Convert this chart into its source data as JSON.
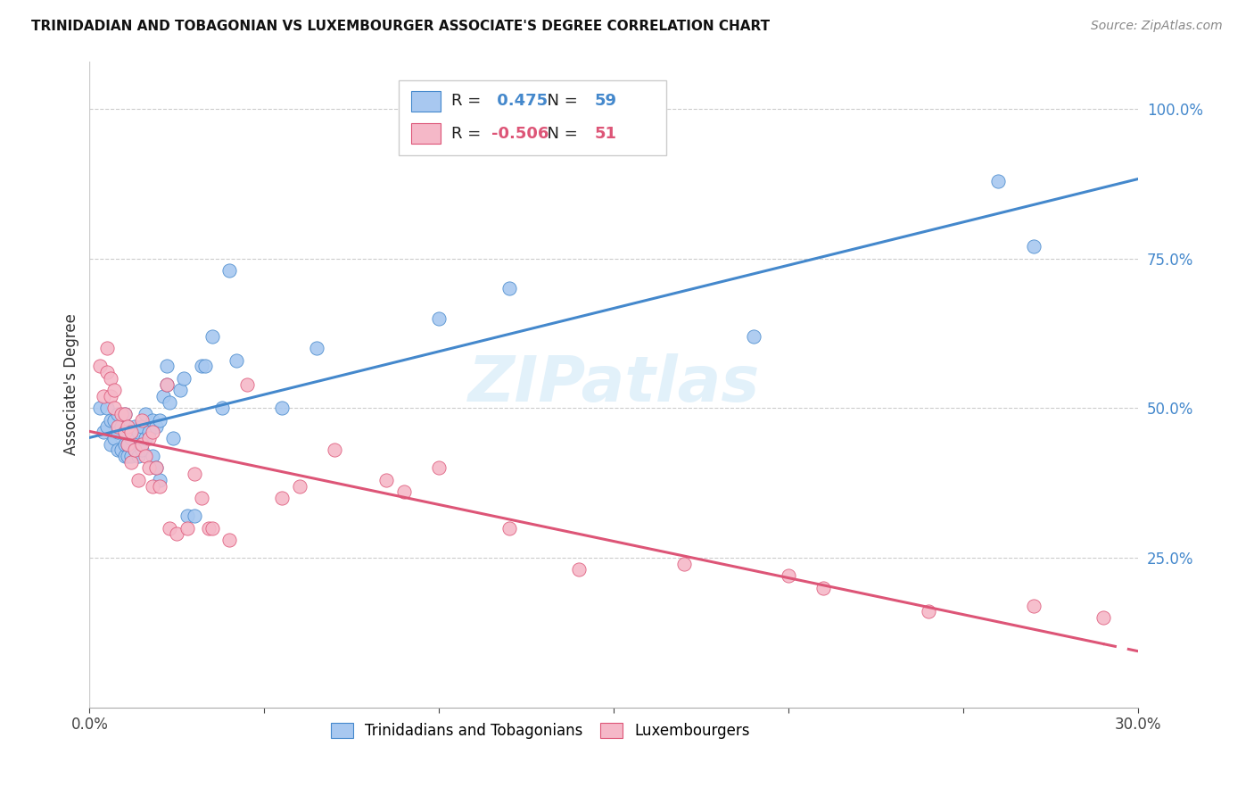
{
  "title": "TRINIDADIAN AND TOBAGONIAN VS LUXEMBOURGER ASSOCIATE'S DEGREE CORRELATION CHART",
  "source": "Source: ZipAtlas.com",
  "ylabel": "Associate's Degree",
  "yticks": [
    "25.0%",
    "50.0%",
    "75.0%",
    "100.0%"
  ],
  "ytick_values": [
    0.25,
    0.5,
    0.75,
    1.0
  ],
  "xlim": [
    0.0,
    0.3
  ],
  "ylim": [
    0.0,
    1.08
  ],
  "watermark": "ZIPatlas",
  "blue_r": 0.475,
  "blue_n": 59,
  "pink_r": -0.506,
  "pink_n": 51,
  "blue_color": "#a8c8f0",
  "pink_color": "#f5b8c8",
  "blue_line_color": "#4488cc",
  "pink_line_color": "#dd5577",
  "blue_number_color": "#4488cc",
  "pink_number_color": "#dd5577",
  "legend_label_blue": "Trinidadians and Tobagonians",
  "legend_label_pink": "Luxembourgers",
  "blue_x": [
    0.003,
    0.004,
    0.005,
    0.005,
    0.006,
    0.006,
    0.007,
    0.007,
    0.008,
    0.008,
    0.008,
    0.009,
    0.009,
    0.01,
    0.01,
    0.01,
    0.01,
    0.011,
    0.011,
    0.011,
    0.012,
    0.012,
    0.013,
    0.013,
    0.014,
    0.014,
    0.015,
    0.015,
    0.016,
    0.016,
    0.017,
    0.018,
    0.018,
    0.019,
    0.019,
    0.02,
    0.02,
    0.021,
    0.022,
    0.022,
    0.023,
    0.024,
    0.026,
    0.027,
    0.028,
    0.03,
    0.032,
    0.033,
    0.035,
    0.038,
    0.04,
    0.042,
    0.055,
    0.065,
    0.1,
    0.12,
    0.19,
    0.26,
    0.27
  ],
  "blue_y": [
    0.5,
    0.46,
    0.47,
    0.5,
    0.44,
    0.48,
    0.45,
    0.48,
    0.43,
    0.46,
    0.49,
    0.43,
    0.47,
    0.42,
    0.44,
    0.46,
    0.49,
    0.42,
    0.44,
    0.47,
    0.42,
    0.45,
    0.43,
    0.47,
    0.42,
    0.46,
    0.43,
    0.47,
    0.45,
    0.49,
    0.46,
    0.42,
    0.48,
    0.4,
    0.47,
    0.38,
    0.48,
    0.52,
    0.54,
    0.57,
    0.51,
    0.45,
    0.53,
    0.55,
    0.32,
    0.32,
    0.57,
    0.57,
    0.62,
    0.5,
    0.73,
    0.58,
    0.5,
    0.6,
    0.65,
    0.7,
    0.62,
    0.88,
    0.77
  ],
  "pink_x": [
    0.003,
    0.004,
    0.005,
    0.005,
    0.006,
    0.006,
    0.007,
    0.007,
    0.008,
    0.009,
    0.01,
    0.01,
    0.011,
    0.011,
    0.012,
    0.012,
    0.013,
    0.014,
    0.015,
    0.015,
    0.016,
    0.017,
    0.017,
    0.018,
    0.018,
    0.019,
    0.02,
    0.022,
    0.023,
    0.025,
    0.028,
    0.03,
    0.032,
    0.034,
    0.035,
    0.04,
    0.045,
    0.055,
    0.06,
    0.07,
    0.085,
    0.09,
    0.1,
    0.12,
    0.14,
    0.17,
    0.2,
    0.21,
    0.24,
    0.27,
    0.29
  ],
  "pink_y": [
    0.57,
    0.52,
    0.56,
    0.6,
    0.52,
    0.55,
    0.5,
    0.53,
    0.47,
    0.49,
    0.46,
    0.49,
    0.44,
    0.47,
    0.41,
    0.46,
    0.43,
    0.38,
    0.44,
    0.48,
    0.42,
    0.4,
    0.45,
    0.37,
    0.46,
    0.4,
    0.37,
    0.54,
    0.3,
    0.29,
    0.3,
    0.39,
    0.35,
    0.3,
    0.3,
    0.28,
    0.54,
    0.35,
    0.37,
    0.43,
    0.38,
    0.36,
    0.4,
    0.3,
    0.23,
    0.24,
    0.22,
    0.2,
    0.16,
    0.17,
    0.15
  ]
}
